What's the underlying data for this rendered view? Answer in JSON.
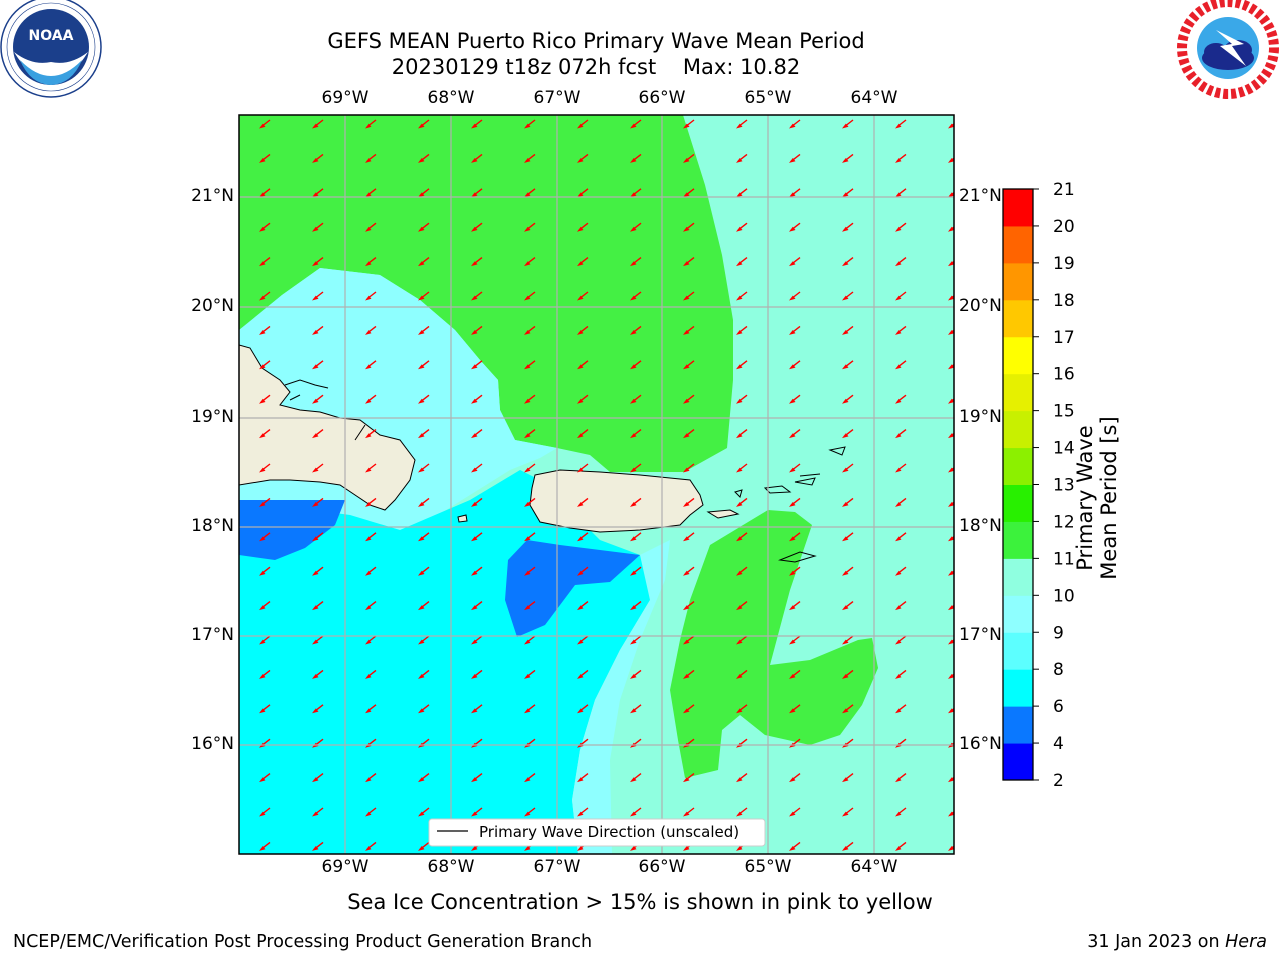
{
  "title_line1": "GEFS MEAN Puerto Rico Primary Wave Mean Period",
  "title_line2": "20230129 t18z 072h fcst",
  "title_max": "Max: 10.82",
  "lon_ticks": [
    "69°W",
    "68°W",
    "67°W",
    "66°W",
    "65°W",
    "64°W"
  ],
  "lat_ticks": [
    "21°N",
    "20°N",
    "19°N",
    "18°N",
    "17°N",
    "16°N"
  ],
  "colorbar": {
    "label": "Primary Wave Mean Period [s]",
    "ticks": [
      "2",
      "4",
      "6",
      "8",
      "9",
      "10",
      "11",
      "12",
      "13",
      "14",
      "15",
      "16",
      "17",
      "18",
      "19",
      "20",
      "21"
    ],
    "colors": [
      "#0000ff",
      "#0a78ff",
      "#00ffff",
      "#5cffff",
      "#8effff",
      "#8fffe0",
      "#3cf23c",
      "#28f000",
      "#8cf000",
      "#c8f000",
      "#e6f000",
      "#ffff00",
      "#ffc800",
      "#ff9600",
      "#ff6400",
      "#ff3200",
      "#ff0000"
    ]
  },
  "legend_label": "Primary Wave Direction (unscaled)",
  "footnote": "Sea Ice Concentration > 15% is shown in pink to yellow",
  "footer_left": "NCEP/EMC/Verification Post Processing Product Generation Branch",
  "footer_right_date": "31 Jan 2023 on ",
  "footer_right_host": "Hera",
  "colors": {
    "land": "#f0eedc",
    "green_zone": "#44f044",
    "aqua_zone": "#8fffe0",
    "light_cyan_zone": "#8effff",
    "cyan_zone": "#00ffff",
    "blue_zone": "#0a78ff",
    "arrow": "#ff0000"
  },
  "logos": {
    "left": "noaa-logo",
    "right": "nws-logo"
  }
}
